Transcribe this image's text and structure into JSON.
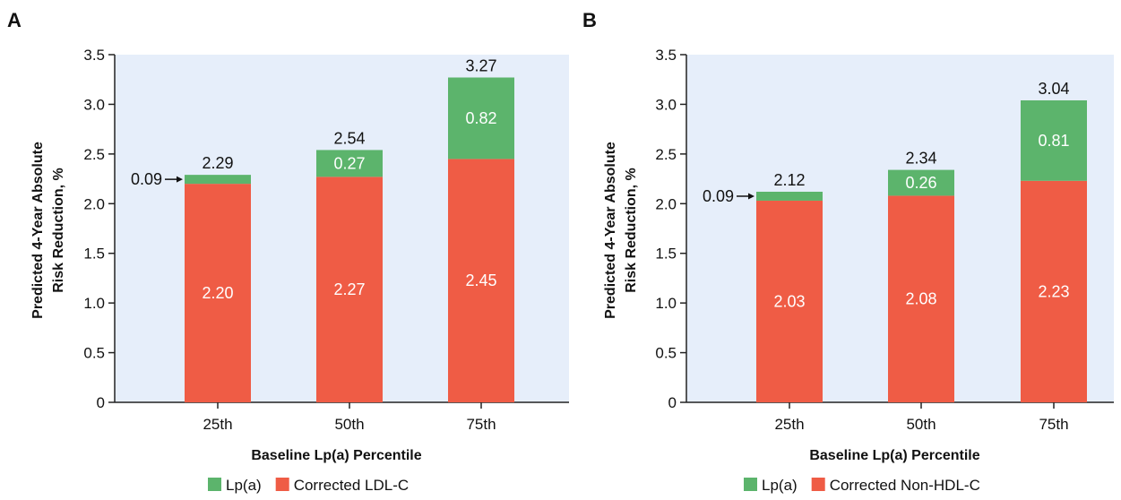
{
  "colors": {
    "lpa": "#5cb46c",
    "corrected": "#ef5c45",
    "plot_bg": "#e6eefa",
    "axis": "#222222"
  },
  "chart_data": [
    {
      "type": "bar",
      "stacked": true,
      "panel": "A",
      "xlabel": "Baseline Lp(a) Percentile",
      "ylabel_lines": [
        "Predicted 4-Year Absolute",
        "Risk Reduction, %"
      ],
      "ylim": [
        0,
        3.5
      ],
      "yticks": [
        "0",
        "0.5",
        "1.0",
        "1.5",
        "2.0",
        "2.5",
        "3.0",
        "3.5"
      ],
      "categories": [
        "25th",
        "50th",
        "75th"
      ],
      "series": [
        {
          "name": "Corrected LDL-C",
          "values": [
            2.2,
            2.27,
            2.45
          ],
          "labels": [
            "2.20",
            "2.27",
            "2.45"
          ]
        },
        {
          "name": "Lp(a)",
          "values": [
            0.09,
            0.27,
            0.82
          ],
          "labels": [
            "0.09",
            "0.27",
            "0.82"
          ]
        }
      ],
      "totals": [
        2.29,
        2.54,
        3.27
      ],
      "total_labels": [
        "2.29",
        "2.54",
        "3.27"
      ],
      "legend": [
        "Lp(a)",
        "Corrected LDL-C"
      ]
    },
    {
      "type": "bar",
      "stacked": true,
      "panel": "B",
      "xlabel": "Baseline Lp(a) Percentile",
      "ylabel_lines": [
        "Predicted 4-Year Absolute",
        "Risk Reduction, %"
      ],
      "ylim": [
        0,
        3.5
      ],
      "yticks": [
        "0",
        "0.5",
        "1.0",
        "1.5",
        "2.0",
        "2.5",
        "3.0",
        "3.5"
      ],
      "categories": [
        "25th",
        "50th",
        "75th"
      ],
      "series": [
        {
          "name": "Corrected Non-HDL-C",
          "values": [
            2.03,
            2.08,
            2.23
          ],
          "labels": [
            "2.03",
            "2.08",
            "2.23"
          ]
        },
        {
          "name": "Lp(a)",
          "values": [
            0.09,
            0.26,
            0.81
          ],
          "labels": [
            "0.09",
            "0.26",
            "0.81"
          ]
        }
      ],
      "totals": [
        2.12,
        2.34,
        3.04
      ],
      "total_labels": [
        "2.12",
        "2.34",
        "3.04"
      ],
      "legend": [
        "Lp(a)",
        "Corrected Non-HDL-C"
      ]
    }
  ]
}
